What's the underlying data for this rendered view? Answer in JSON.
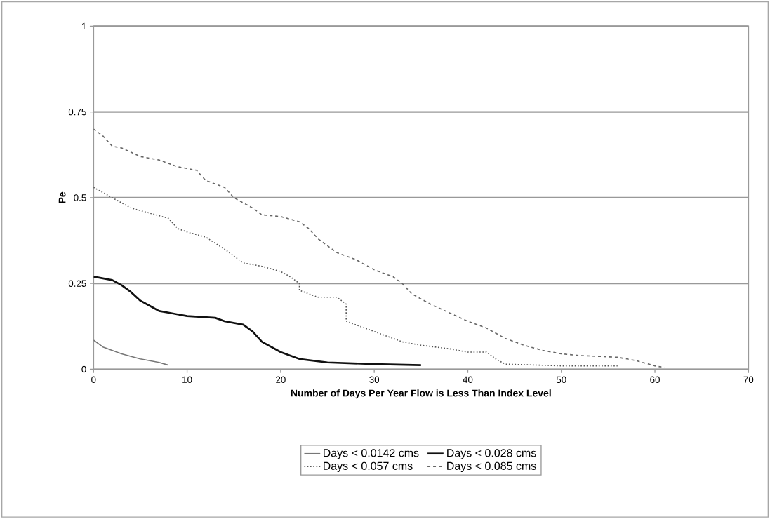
{
  "chart_data": {
    "type": "line",
    "xlabel": "Number of Days Per Year Flow is Less Than Index Level",
    "ylabel": "Pe",
    "xlim": [
      0,
      70
    ],
    "xticks": [
      0,
      10,
      20,
      30,
      40,
      50,
      60,
      70
    ],
    "ylim": [
      0,
      1
    ],
    "yticks": [
      0,
      0.25,
      0.5,
      0.75,
      1
    ],
    "grid": "y",
    "legend": "bottom",
    "marker": "none",
    "series": [
      {
        "name": "Days < 0.0142 cms",
        "color": "#777777",
        "line_style": "solid",
        "x": [
          0,
          1,
          3,
          5,
          7,
          8
        ],
        "values": [
          0.085,
          0.065,
          0.045,
          0.03,
          0.02,
          0.012
        ]
      },
      {
        "name": "Days < 0.028 cms",
        "color": "#111111",
        "line_style": "solid",
        "x": [
          0,
          2,
          3,
          4,
          5,
          6,
          7,
          8,
          10,
          13,
          14,
          16,
          17,
          18,
          20,
          22,
          25,
          30,
          35
        ],
        "values": [
          0.27,
          0.26,
          0.245,
          0.225,
          0.2,
          0.185,
          0.17,
          0.165,
          0.155,
          0.15,
          0.14,
          0.13,
          0.11,
          0.08,
          0.05,
          0.03,
          0.02,
          0.015,
          0.012
        ]
      },
      {
        "name": "Days < 0.057 cms",
        "color": "#555555",
        "line_style": "dotted",
        "x": [
          0,
          2,
          4,
          6,
          8,
          9,
          10,
          12,
          14,
          16,
          18,
          20,
          21,
          22,
          22,
          24,
          26,
          27,
          27,
          29,
          31,
          33,
          35,
          38,
          40,
          42,
          43,
          44,
          50,
          56
        ],
        "values": [
          0.53,
          0.5,
          0.47,
          0.455,
          0.44,
          0.41,
          0.4,
          0.385,
          0.35,
          0.31,
          0.3,
          0.285,
          0.27,
          0.25,
          0.23,
          0.21,
          0.21,
          0.19,
          0.14,
          0.12,
          0.1,
          0.08,
          0.07,
          0.06,
          0.05,
          0.05,
          0.03,
          0.015,
          0.01,
          0.01
        ]
      },
      {
        "name": "Days < 0.085 cms",
        "color": "#666666",
        "line_style": "dashed",
        "x": [
          0,
          1,
          2,
          3,
          5,
          7,
          9,
          11,
          12,
          14,
          15,
          17,
          18,
          20,
          22,
          23,
          24,
          26,
          28,
          30,
          32,
          33,
          34,
          36,
          38,
          40,
          42,
          44,
          46,
          48,
          50,
          52,
          56,
          58,
          60,
          61
        ],
        "values": [
          0.7,
          0.68,
          0.65,
          0.645,
          0.62,
          0.61,
          0.59,
          0.58,
          0.55,
          0.53,
          0.5,
          0.47,
          0.45,
          0.445,
          0.43,
          0.41,
          0.38,
          0.34,
          0.32,
          0.29,
          0.27,
          0.25,
          0.22,
          0.19,
          0.165,
          0.14,
          0.12,
          0.09,
          0.07,
          0.055,
          0.045,
          0.04,
          0.035,
          0.025,
          0.01,
          0.005
        ]
      }
    ]
  }
}
